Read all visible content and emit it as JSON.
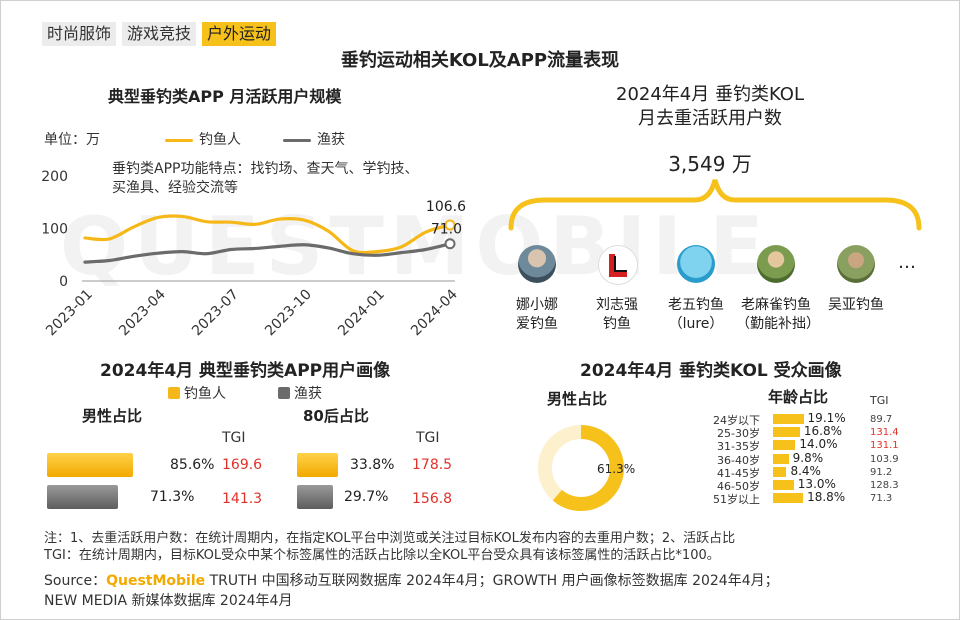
{
  "tabs": [
    "时尚服饰",
    "游戏竞技",
    "户外运动"
  ],
  "page_title": "垂钓运动相关KOL及APP流量表现",
  "watermark": "QUESTMOBILE",
  "left_chart": {
    "title": "典型垂钓类APP 月活跃用户规模",
    "unit": "单位：万",
    "annotation_line1": "垂钓类APP功能特点：找钓场、查天气、学钓技、",
    "annotation_line2": "买渔具、经验交流等",
    "end_label_1": "106.6",
    "end_label_2": "71.0"
  },
  "chart_data": {
    "type": "line",
    "title": "典型垂钓类APP 月活跃用户规模",
    "ylabel": "单位：万",
    "ylim": [
      0,
      200
    ],
    "yticks": [
      "200",
      "100",
      "0"
    ],
    "xtick_labels": [
      "2023-01",
      "2023-04",
      "2023-07",
      "2023-10",
      "2024-01",
      "2024-04"
    ],
    "x": [
      "2023-01",
      "2023-02",
      "2023-03",
      "2023-04",
      "2023-05",
      "2023-06",
      "2023-07",
      "2023-08",
      "2023-09",
      "2023-10",
      "2023-11",
      "2023-12",
      "2024-01",
      "2024-02",
      "2024-03",
      "2024-04"
    ],
    "series": [
      {
        "name": "钓鱼人",
        "color": "#f6b818",
        "values": [
          82,
          80,
          103,
          121,
          123,
          113,
          112,
          108,
          118,
          116,
          95,
          58,
          56,
          65,
          93,
          106.6
        ]
      },
      {
        "name": "渔获",
        "color": "#6b6b6b",
        "values": [
          36,
          39,
          47,
          53,
          56,
          52,
          60,
          62,
          66,
          69,
          63,
          52,
          49,
          54,
          60,
          71.0
        ]
      }
    ]
  },
  "kol_block": {
    "title_line1": "2024年4月 垂钓类KOL",
    "title_line2": "月去重活跃用户数",
    "total": "3,549 万",
    "more": "…",
    "kols": [
      {
        "name1": "娜小娜",
        "name2": "爱钓鱼"
      },
      {
        "name1": "刘志强",
        "name2": "钓鱼"
      },
      {
        "name1": "老五钓鱼",
        "name2": "（lure）"
      },
      {
        "name1": "老麻雀钓鱼",
        "name2": "（勤能补拙）"
      },
      {
        "name1": "吴亚钓鱼",
        "name2": ""
      }
    ]
  },
  "app_profile": {
    "title": "2024年4月 典型垂钓类APP用户画像",
    "legend": [
      "钓鱼人",
      "渔获"
    ],
    "male": {
      "label": "男性占比",
      "tgi_header": "TGI",
      "rows": [
        {
          "series": "钓鱼人",
          "value": 85.6,
          "value_text": "85.6%",
          "tgi": "169.6"
        },
        {
          "series": "渔获",
          "value": 71.3,
          "value_text": "71.3%",
          "tgi": "141.3"
        }
      ]
    },
    "post80": {
      "label": "80后占比",
      "tgi_header": "TGI",
      "rows": [
        {
          "series": "钓鱼人",
          "value": 33.8,
          "value_text": "33.8%",
          "tgi": "178.5"
        },
        {
          "series": "渔获",
          "value": 29.7,
          "value_text": "29.7%",
          "tgi": "156.8"
        }
      ]
    }
  },
  "kol_audience": {
    "title": "2024年4月 垂钓类KOL 受众画像",
    "male_label": "男性占比",
    "male_value": 61.3,
    "male_text": "61.3%",
    "age_label": "年龄占比",
    "tgi_header": "TGI",
    "ages": [
      {
        "group": "24岁以下",
        "pct": 19.1,
        "pct_text": "19.1%",
        "tgi": "89.7",
        "tgi_high": false
      },
      {
        "group": "25-30岁",
        "pct": 16.8,
        "pct_text": "16.8%",
        "tgi": "131.4",
        "tgi_high": true
      },
      {
        "group": "31-35岁",
        "pct": 14.0,
        "pct_text": "14.0%",
        "tgi": "131.1",
        "tgi_high": true
      },
      {
        "group": "36-40岁",
        "pct": 9.8,
        "pct_text": "9.8%",
        "tgi": "103.9",
        "tgi_high": false
      },
      {
        "group": "41-45岁",
        "pct": 8.4,
        "pct_text": "8.4%",
        "tgi": "91.2",
        "tgi_high": false
      },
      {
        "group": "46-50岁",
        "pct": 13.0,
        "pct_text": "13.0%",
        "tgi": "128.3",
        "tgi_high": false
      },
      {
        "group": "51岁以上",
        "pct": 18.8,
        "pct_text": "18.8%",
        "tgi": "71.3",
        "tgi_high": false
      }
    ]
  },
  "notes": {
    "line1": "注：1、去重活跃用户数：在统计周期内，在指定KOL平台中浏览或关注过目标KOL发布内容的去重用户数；2、活跃占比",
    "line2": "TGI：在统计周期内，目标KOL受众中某个标签属性的活跃占比除以全KOL平台受众具有该标签属性的活跃占比*100。",
    "source_prefix": "Source：",
    "source_brand": "QuestMobile",
    "source_rest": " TRUTH 中国移动互联网数据库 2024年4月；GROWTH 用户画像标签数据库 2024年4月；",
    "source_line2": "NEW MEDIA 新媒体数据库 2024年4月"
  }
}
